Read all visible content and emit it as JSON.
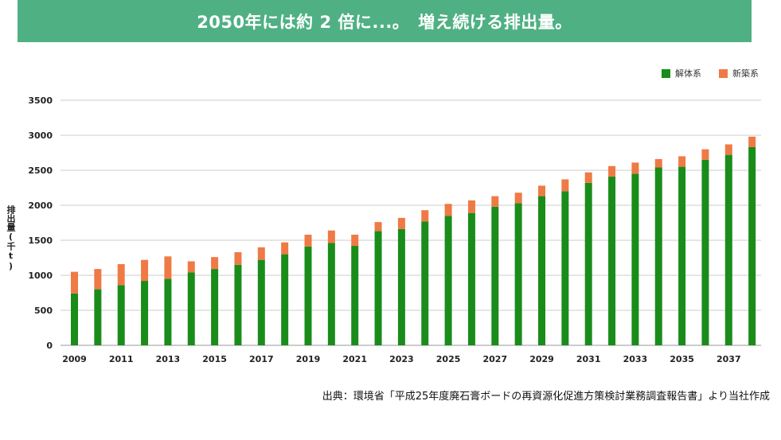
{
  "banner": {
    "title": "2050年には約 2 倍に...。　増え続ける排出量。"
  },
  "source_note": "出典：環境省「平成25年度廃石膏ボードの再資源化促進方策検討業務調査報告書」より当社作成",
  "colors": {
    "banner": "#4fb084",
    "demolition": "#1a8c1a",
    "new_construction": "#ef7a45",
    "grid": "#cccccc"
  },
  "chart_data": {
    "type": "bar",
    "stacked": true,
    "title": "",
    "xlabel": "",
    "ylabel": "排出量(千t)",
    "ylim": [
      0,
      3500
    ],
    "yticks": [
      0,
      500,
      1000,
      1500,
      2000,
      2500,
      3000,
      3500
    ],
    "categories": [
      2009,
      2010,
      2011,
      2012,
      2013,
      2014,
      2015,
      2016,
      2017,
      2018,
      2019,
      2020,
      2021,
      2022,
      2023,
      2024,
      2025,
      2026,
      2027,
      2028,
      2029,
      2030,
      2031,
      2032,
      2033,
      2034,
      2035,
      2036,
      2037,
      2038
    ],
    "xtick_labels": [
      "2009",
      "2011",
      "2013",
      "2015",
      "2017",
      "2019",
      "2021",
      "2023",
      "2025",
      "2027",
      "2029",
      "2031",
      "2033",
      "2035",
      "2037"
    ],
    "legend_position": "top-right",
    "series": [
      {
        "name": "解体系",
        "color": "#1a8c1a",
        "values": [
          740,
          800,
          860,
          920,
          950,
          1040,
          1090,
          1150,
          1220,
          1300,
          1410,
          1460,
          1420,
          1630,
          1660,
          1770,
          1850,
          1890,
          1980,
          2030,
          2130,
          2200,
          2320,
          2410,
          2450,
          2540,
          2550,
          2650,
          2720,
          2830
        ]
      },
      {
        "name": "新築系",
        "color": "#ef7a45",
        "values": [
          310,
          290,
          300,
          300,
          320,
          160,
          170,
          180,
          180,
          170,
          170,
          180,
          160,
          130,
          160,
          160,
          170,
          180,
          150,
          150,
          150,
          170,
          150,
          150,
          160,
          120,
          150,
          150,
          150,
          150
        ]
      }
    ]
  }
}
